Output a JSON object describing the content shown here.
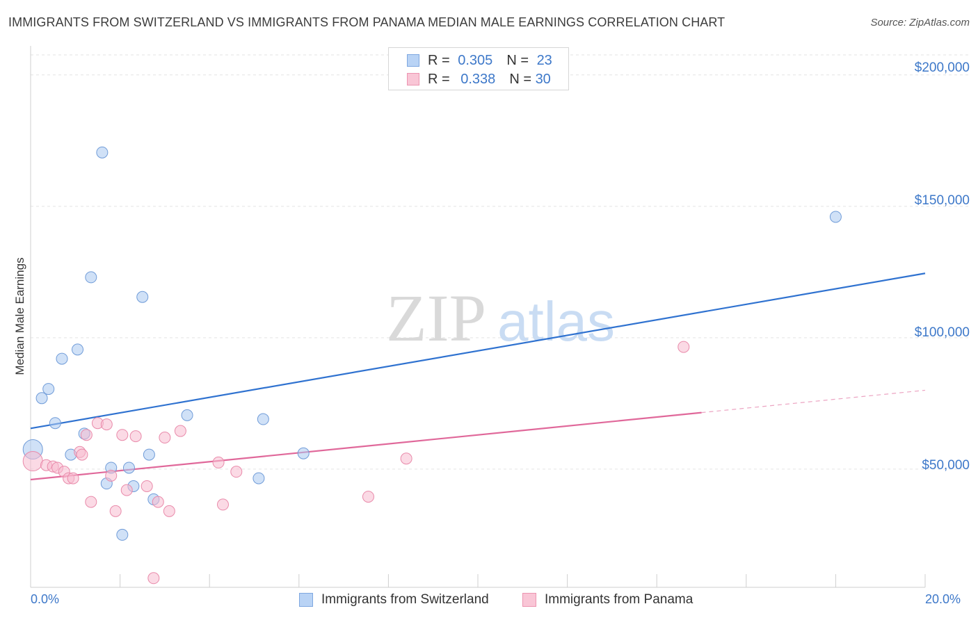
{
  "title": "IMMIGRANTS FROM SWITZERLAND VS IMMIGRANTS FROM PANAMA MEDIAN MALE EARNINGS CORRELATION CHART",
  "source": "Source: ZipAtlas.com",
  "watermark": {
    "zip": "ZIP",
    "atlas": "atlas"
  },
  "legend_top": [
    {
      "r_label": "R =",
      "r_value": "0.305",
      "n_label": "N =",
      "n_value": "23",
      "color": "#b9d3f5",
      "border": "#7ea7e0"
    },
    {
      "r_label": "R =",
      "r_value": "0.338",
      "n_label": "N =",
      "n_value": "30",
      "color": "#f9c6d6",
      "border": "#ec94b0"
    }
  ],
  "chart_data": {
    "type": "scatter",
    "title": "IMMIGRANTS FROM SWITZERLAND VS IMMIGRANTS FROM PANAMA MEDIAN MALE EARNINGS CORRELATION CHART",
    "xlabel": "",
    "ylabel": "Median Male Earnings",
    "xlim": [
      0,
      20
    ],
    "ylim": [
      5000,
      210000
    ],
    "x_tick_labels": [
      "0.0%",
      "20.0%"
    ],
    "y_ticks": [
      50000,
      100000,
      150000,
      200000
    ],
    "y_tick_labels": [
      "$50,000",
      "$100,000",
      "$150,000",
      "$200,000"
    ],
    "grid": true,
    "series": [
      {
        "name": "Immigrants from Switzerland",
        "color": "#a9c8f0",
        "stroke": "#6f9bd8",
        "line_color": "#2f72d0",
        "points": [
          {
            "x": 0.05,
            "y": 57500,
            "big": true
          },
          {
            "x": 0.25,
            "y": 77000
          },
          {
            "x": 0.4,
            "y": 80500
          },
          {
            "x": 0.55,
            "y": 67500
          },
          {
            "x": 0.7,
            "y": 92000
          },
          {
            "x": 0.9,
            "y": 55500
          },
          {
            "x": 1.05,
            "y": 95500
          },
          {
            "x": 1.2,
            "y": 63500
          },
          {
            "x": 1.35,
            "y": 123000
          },
          {
            "x": 1.6,
            "y": 170500
          },
          {
            "x": 1.7,
            "y": 44500
          },
          {
            "x": 1.8,
            "y": 50500
          },
          {
            "x": 2.05,
            "y": 25000
          },
          {
            "x": 2.2,
            "y": 50500
          },
          {
            "x": 2.3,
            "y": 43500
          },
          {
            "x": 2.5,
            "y": 115500
          },
          {
            "x": 2.65,
            "y": 55500
          },
          {
            "x": 2.75,
            "y": 38500
          },
          {
            "x": 3.5,
            "y": 70500
          },
          {
            "x": 5.2,
            "y": 69000
          },
          {
            "x": 5.1,
            "y": 46500
          },
          {
            "x": 6.1,
            "y": 56000
          },
          {
            "x": 18.0,
            "y": 146000
          }
        ],
        "trend": {
          "x1": 0,
          "y1": 65500,
          "x2": 20,
          "y2": 124500
        }
      },
      {
        "name": "Immigrants from Panama",
        "color": "#f7bcd0",
        "stroke": "#e98aaa",
        "line_color": "#e0689a",
        "points": [
          {
            "x": 0.05,
            "y": 53000,
            "big": true
          },
          {
            "x": 0.35,
            "y": 51500
          },
          {
            "x": 0.5,
            "y": 51000
          },
          {
            "x": 0.6,
            "y": 50500
          },
          {
            "x": 0.75,
            "y": 49000
          },
          {
            "x": 0.85,
            "y": 46500
          },
          {
            "x": 0.95,
            "y": 46500
          },
          {
            "x": 1.1,
            "y": 56500
          },
          {
            "x": 1.15,
            "y": 55500
          },
          {
            "x": 1.25,
            "y": 63000
          },
          {
            "x": 1.35,
            "y": 37500
          },
          {
            "x": 1.5,
            "y": 67500
          },
          {
            "x": 1.7,
            "y": 67000
          },
          {
            "x": 1.8,
            "y": 47500
          },
          {
            "x": 1.9,
            "y": 34000
          },
          {
            "x": 2.05,
            "y": 63000
          },
          {
            "x": 2.15,
            "y": 42000
          },
          {
            "x": 2.35,
            "y": 62500
          },
          {
            "x": 2.6,
            "y": 43500
          },
          {
            "x": 2.75,
            "y": 8500
          },
          {
            "x": 2.85,
            "y": 37500
          },
          {
            "x": 3.0,
            "y": 62000
          },
          {
            "x": 3.1,
            "y": 34000
          },
          {
            "x": 3.35,
            "y": 64500
          },
          {
            "x": 4.2,
            "y": 52500
          },
          {
            "x": 4.3,
            "y": 36500
          },
          {
            "x": 4.6,
            "y": 49000
          },
          {
            "x": 7.55,
            "y": 39500
          },
          {
            "x": 8.4,
            "y": 54000
          },
          {
            "x": 14.6,
            "y": 96500
          }
        ],
        "trend": {
          "x1": 0,
          "y1": 46000,
          "x2": 15,
          "y2": 71500
        },
        "trend_dashed": {
          "x1": 15,
          "y1": 71500,
          "x2": 20,
          "y2": 80000
        }
      }
    ]
  }
}
